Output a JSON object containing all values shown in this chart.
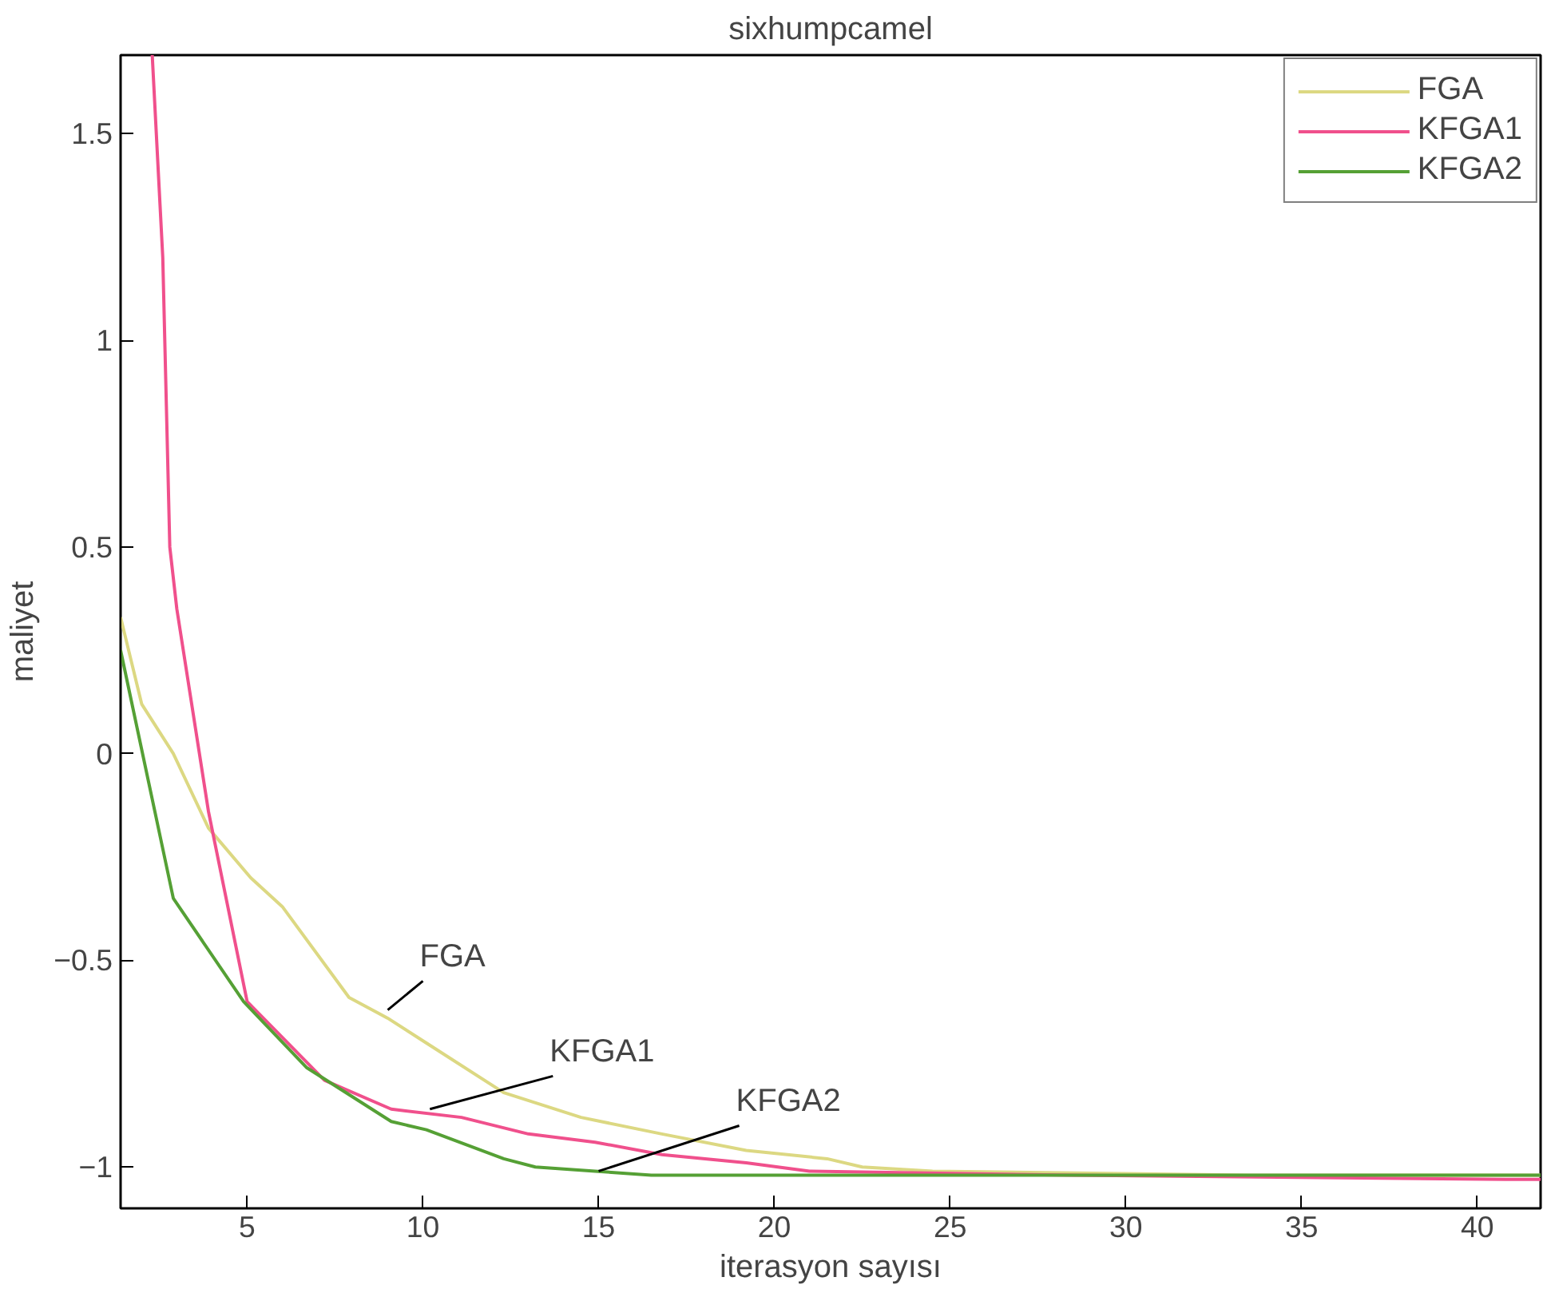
{
  "chart_data": {
    "type": "line",
    "title": "sixhumpcamel",
    "xlabel": "iterasyon sayısı",
    "ylabel": "maliyet",
    "xlim": [
      1.4,
      41.8
    ],
    "ylim": [
      -1.1,
      1.69
    ],
    "xticks": [
      5,
      10,
      15,
      20,
      25,
      30,
      35,
      40
    ],
    "yticks": [
      -1,
      -0.5,
      0,
      0.5,
      1,
      1.5
    ],
    "grid": false,
    "legend": "top right",
    "line_style": "solid",
    "marker": "none",
    "series": [
      {
        "name": "FGA",
        "color": "#dcd882",
        "x": [
          1.4,
          2,
          2.9,
          3.9,
          5.1,
          6,
          7.9,
          9,
          10.1,
          12.3,
          14.5,
          16.8,
          19.2,
          21.5,
          22.5,
          24.5,
          33.5,
          41.8
        ],
        "values": [
          0.33,
          0.12,
          0.0,
          -0.18,
          -0.3,
          -0.37,
          -0.59,
          -0.64,
          -0.7,
          -0.82,
          -0.88,
          -0.92,
          -0.96,
          -0.98,
          -1.0,
          -1.01,
          -1.02,
          -1.02
        ]
      },
      {
        "name": "KFGA1",
        "color": "#f0508c",
        "x": [
          2.3,
          2.6,
          2.8,
          3.0,
          3.9,
          5,
          7.2,
          9.1,
          11.1,
          13,
          14.9,
          16.8,
          19.2,
          21,
          28.5,
          40.8,
          41.8
        ],
        "values": [
          1.69,
          1.2,
          0.5,
          0.35,
          -0.14,
          -0.6,
          -0.79,
          -0.86,
          -0.88,
          -0.92,
          -0.94,
          -0.97,
          -0.99,
          -1.01,
          -1.02,
          -1.03,
          -1.03
        ]
      },
      {
        "name": "KFGA2",
        "color": "#55a035",
        "x": [
          1.4,
          2.9,
          4.9,
          6.7,
          9.1,
          10.1,
          12.3,
          13.2,
          14.9,
          16.5,
          41.8
        ],
        "values": [
          0.25,
          -0.35,
          -0.6,
          -0.76,
          -0.89,
          -0.91,
          -0.98,
          -1.0,
          -1.01,
          -1.02,
          -1.02
        ]
      }
    ],
    "annotations": [
      {
        "text": "FGA",
        "x": 9.0,
        "y": -0.62
      },
      {
        "text": "KFGA1",
        "x": 10.2,
        "y": -0.86
      },
      {
        "text": "KFGA2",
        "x": 15.0,
        "y": -1.01
      }
    ]
  }
}
